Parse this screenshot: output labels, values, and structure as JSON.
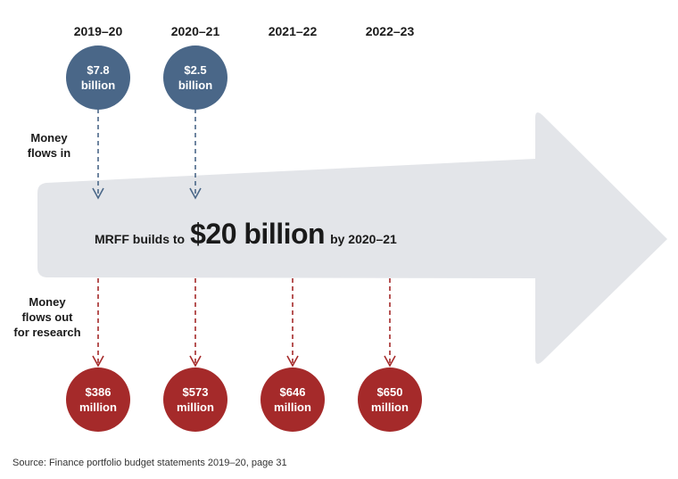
{
  "years": [
    "2019–20",
    "2020–21",
    "2021–22",
    "2022–23"
  ],
  "labels": {
    "money_in": "Money flows in",
    "money_in_lines": [
      "Money",
      "flows in"
    ],
    "money_out": "Money flows out for research",
    "money_out_lines": [
      "Money",
      "flows out",
      "for research"
    ]
  },
  "inflows": [
    {
      "year": "2019–20",
      "amount": "$7.8",
      "unit": "billion"
    },
    {
      "year": "2020–21",
      "amount": "$2.5",
      "unit": "billion"
    }
  ],
  "outflows": [
    {
      "year": "2019–20",
      "amount": "$386",
      "unit": "million"
    },
    {
      "year": "2020–21",
      "amount": "$573",
      "unit": "million"
    },
    {
      "year": "2021–22",
      "amount": "$646",
      "unit": "million"
    },
    {
      "year": "2022–23",
      "amount": "$650",
      "unit": "million"
    }
  ],
  "headline": {
    "prefix": "MRFF builds to",
    "amount": "$20 billion",
    "suffix": "by 2020–21"
  },
  "source": "Source: Finance portfolio budget statements 2019–20, page 31",
  "colors": {
    "inflow": "#4a6788",
    "outflow": "#a52a2a",
    "arrow": "#e3e5e9",
    "inflow_line": "#4a6788",
    "outflow_line": "#a52a2a"
  }
}
